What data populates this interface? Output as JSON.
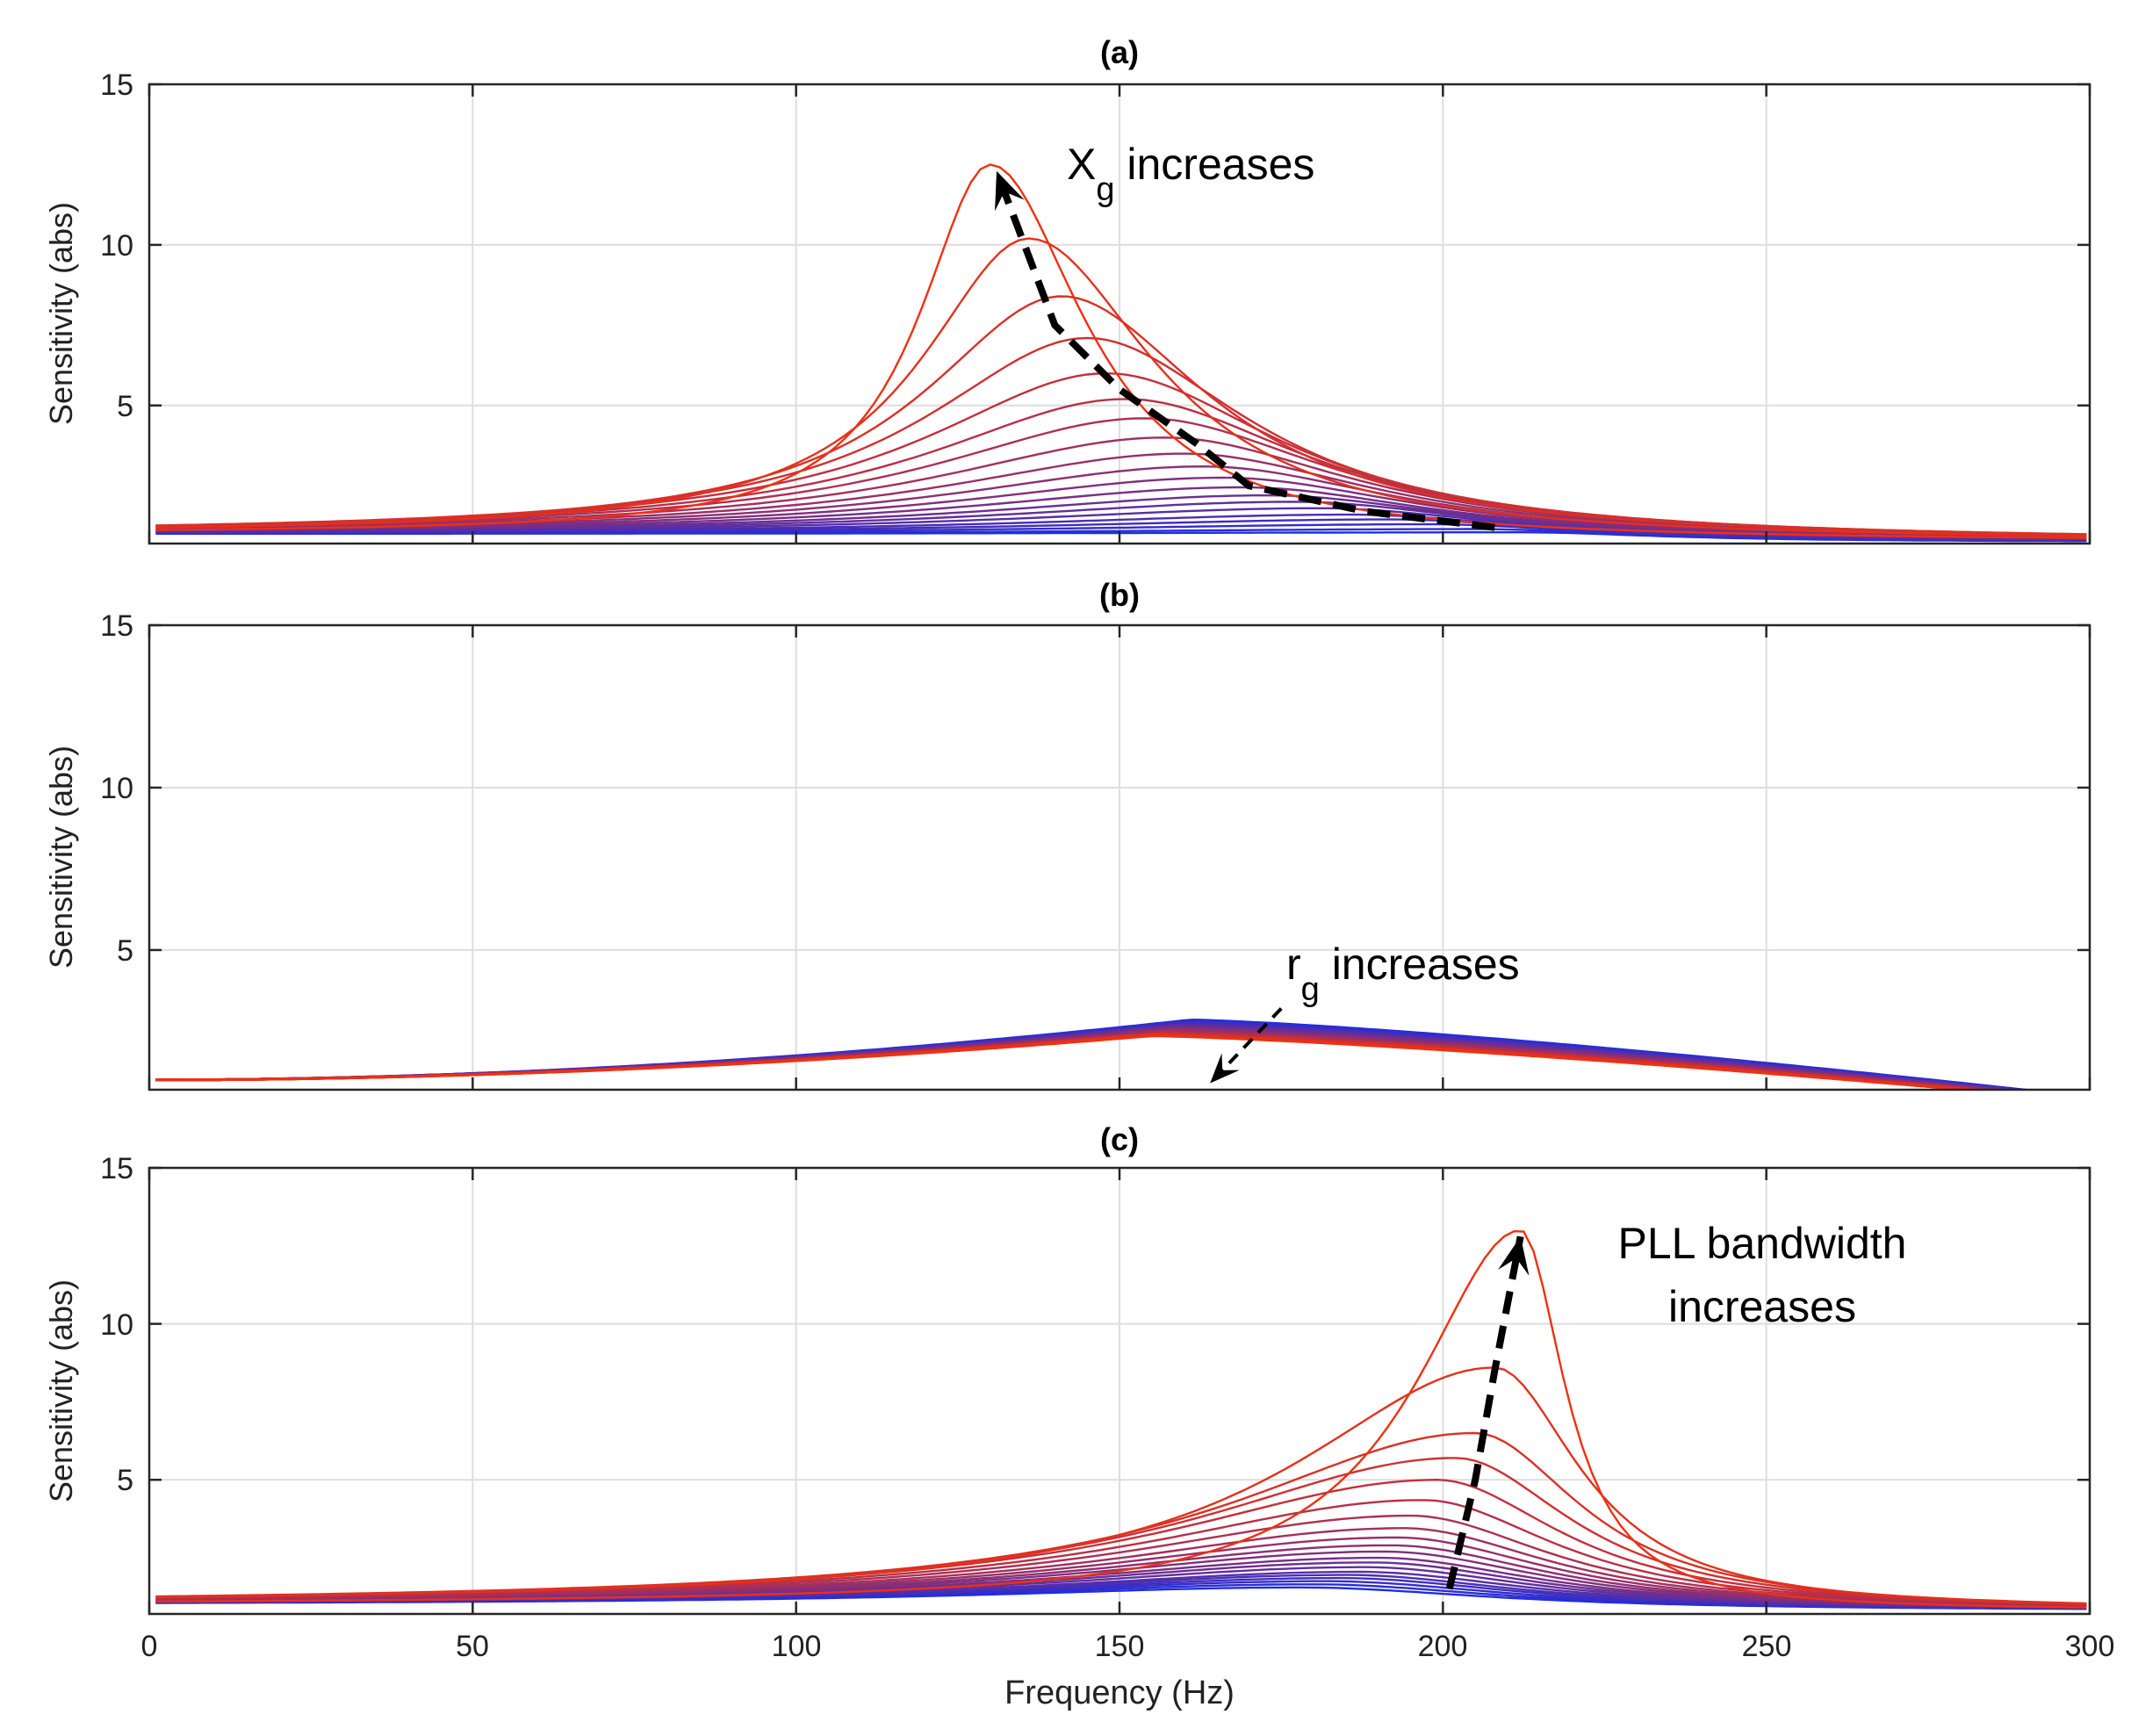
{
  "figure": {
    "x_axis_label": "Frequency (Hz)",
    "y_axis_label": "Sensitivity (abs)",
    "x_ticks": [
      "0",
      "50",
      "100",
      "150",
      "200",
      "250",
      "300"
    ],
    "y_ticks": [
      "5",
      "10",
      "15"
    ]
  },
  "chart_data": [
    {
      "type": "line",
      "panel": "a",
      "title": "(a)",
      "xlabel": "",
      "ylabel": "Sensitivity (abs)",
      "xlim": [
        0,
        300
      ],
      "ylim": [
        0.7,
        15
      ],
      "grid": true,
      "series_count": 20,
      "color_start": "#1f2de0",
      "color_end": "#f03010",
      "curve_model": "resonance",
      "peak_frequencies_hz": [
        212,
        205,
        198,
        192,
        186,
        181,
        177,
        173,
        169,
        166,
        163,
        160,
        157,
        154,
        151,
        148,
        145,
        141,
        136,
        130
      ],
      "peak_values": [
        1.05,
        1.15,
        1.3,
        1.45,
        1.6,
        1.8,
        2.0,
        2.2,
        2.45,
        2.75,
        3.1,
        3.5,
        4.0,
        4.6,
        5.2,
        6.0,
        7.1,
        8.4,
        10.2,
        12.5
      ],
      "start_value": 1.0,
      "end_value_at_300": 0.75,
      "annotation": {
        "main": "X",
        "sub": "g",
        "rest": " increases"
      },
      "arrow_path": [
        [
          208,
          1.2
        ],
        [
          188,
          1.7
        ],
        [
          170,
          2.5
        ],
        [
          162,
          3.8
        ],
        [
          150,
          5.5
        ],
        [
          140,
          7.5
        ],
        [
          131,
          12.3
        ]
      ],
      "arrow_direction": "up"
    },
    {
      "type": "line",
      "panel": "b",
      "title": "(b)",
      "xlabel": "",
      "ylabel": "Sensitivity (abs)",
      "xlim": [
        0,
        300
      ],
      "ylim": [
        0.7,
        15
      ],
      "grid": true,
      "series_count": 20,
      "color_start": "#1f2de0",
      "color_end": "#f03010",
      "curve_model": "bump",
      "peak_frequencies_hz": [
        161,
        161,
        160,
        160,
        160,
        159,
        159,
        159,
        158,
        158,
        158,
        157,
        157,
        157,
        156,
        156,
        156,
        155,
        155,
        155
      ],
      "peak_values": [
        2.85,
        2.82,
        2.79,
        2.76,
        2.73,
        2.7,
        2.67,
        2.64,
        2.61,
        2.58,
        2.55,
        2.52,
        2.5,
        2.48,
        2.46,
        2.44,
        2.42,
        2.4,
        2.38,
        2.36
      ],
      "start_value": 1.0,
      "annotation": {
        "main": "r",
        "sub": "g",
        "rest": " increases"
      },
      "arrow_path": [
        [
          175,
          3.2
        ],
        [
          164,
          0.9
        ]
      ],
      "arrow_direction": "down"
    },
    {
      "type": "line",
      "panel": "c",
      "title": "(c)",
      "xlabel": "Frequency (Hz)",
      "ylabel": "Sensitivity (abs)",
      "xlim": [
        0,
        300
      ],
      "ylim": [
        0.7,
        15
      ],
      "grid": true,
      "series_count": 20,
      "color_start": "#1f2de0",
      "color_end": "#f03010",
      "curve_model": "resonance",
      "peak_frequencies_hz": [
        178,
        180,
        182,
        184,
        185,
        187,
        188,
        189,
        190,
        191,
        192,
        193,
        194,
        195,
        197,
        199,
        202,
        205,
        208,
        212
      ],
      "peak_values": [
        1.55,
        1.65,
        1.75,
        1.85,
        1.95,
        2.05,
        2.2,
        2.35,
        2.5,
        2.7,
        2.9,
        3.15,
        3.45,
        3.85,
        4.35,
        5.0,
        5.7,
        6.5,
        8.6,
        13.0
      ],
      "start_value": 1.0,
      "end_value_at_300": 0.8,
      "annotation": {
        "line1": "PLL bandwidth",
        "line2": "increases"
      },
      "arrow_path": [
        [
          201,
          1.5
        ],
        [
          205,
          5.0
        ],
        [
          208,
          8.5
        ],
        [
          212,
          12.8
        ]
      ],
      "arrow_direction": "up"
    }
  ]
}
